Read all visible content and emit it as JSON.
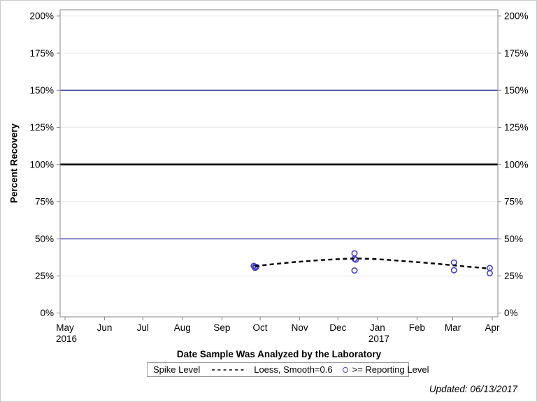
{
  "page": {
    "updated_label": "Updated: 06/13/2017"
  },
  "colors": {
    "frame": "#878787",
    "grid": "#ebebeb",
    "tick": "#878787",
    "ref_blue": "#3a3aae",
    "ref_black": "#000000",
    "marker": "#4343c0",
    "loess": "#000000",
    "legend_border": "#9b9b9b",
    "outer_border": "#c9c9c9"
  },
  "chart_data": {
    "type": "scatter",
    "title": "",
    "ylabel": "Percent Recovery",
    "xlabel": "Date Sample Was Analyzed by the Laboratory",
    "grid": true,
    "y_axis": {
      "min": 0,
      "max": 200,
      "unit": "%",
      "sides": [
        "left",
        "right"
      ],
      "ticks": [
        {
          "value": 0,
          "label": "0%"
        },
        {
          "value": 25,
          "label": "25%"
        },
        {
          "value": 50,
          "label": "50%"
        },
        {
          "value": 75,
          "label": "75%"
        },
        {
          "value": 100,
          "label": "100%"
        },
        {
          "value": 125,
          "label": "125%"
        },
        {
          "value": 150,
          "label": "150%"
        },
        {
          "value": 175,
          "label": "175%"
        },
        {
          "value": 200,
          "label": "200%"
        }
      ]
    },
    "x_axis": {
      "start": "2016-05-01",
      "end": "2017-04-01",
      "ticks": [
        {
          "date": "2016-05-01",
          "label": "May",
          "sublabel": "2016"
        },
        {
          "date": "2016-06-01",
          "label": "Jun"
        },
        {
          "date": "2016-07-01",
          "label": "Jul"
        },
        {
          "date": "2016-08-01",
          "label": "Aug"
        },
        {
          "date": "2016-09-01",
          "label": "Sep"
        },
        {
          "date": "2016-10-01",
          "label": "Oct"
        },
        {
          "date": "2016-11-01",
          "label": "Nov"
        },
        {
          "date": "2016-12-01",
          "label": "Dec"
        },
        {
          "date": "2017-01-01",
          "label": "Jan",
          "sublabel": "2017"
        },
        {
          "date": "2017-02-01",
          "label": "Feb"
        },
        {
          "date": "2017-03-01",
          "label": "Mar"
        },
        {
          "date": "2017-04-01",
          "label": "Apr"
        }
      ]
    },
    "reference_lines": [
      {
        "value": 150,
        "color": "#3a3aae",
        "width": 1.3
      },
      {
        "value": 100,
        "color": "#000000",
        "width": 2.6
      },
      {
        "value": 50,
        "color": "#3a3aae",
        "width": 1.3
      }
    ],
    "series": [
      {
        "name": ">= Reporting Level",
        "type": "scatter",
        "marker": "circle",
        "color": "#4343c0",
        "points": [
          {
            "date": "2016-09-26",
            "value": 31.7
          },
          {
            "date": "2016-09-27",
            "value": 31.2
          },
          {
            "date": "2016-09-27",
            "value": 30.4
          },
          {
            "date": "2016-09-28",
            "value": 31.0
          },
          {
            "date": "2016-12-14",
            "value": 40.2
          },
          {
            "date": "2016-12-14",
            "value": 36.5
          },
          {
            "date": "2016-12-15",
            "value": 35.9
          },
          {
            "date": "2016-12-14",
            "value": 28.6
          },
          {
            "date": "2017-03-02",
            "value": 34.0
          },
          {
            "date": "2017-03-02",
            "value": 28.8
          },
          {
            "date": "2017-03-30",
            "value": 30.3
          },
          {
            "date": "2017-03-30",
            "value": 26.8
          }
        ]
      },
      {
        "name": "Loess, Smooth=0.6",
        "type": "line",
        "style": "dashed",
        "color": "#000000",
        "points": [
          {
            "date": "2016-09-27",
            "value": 31.6
          },
          {
            "date": "2016-10-12",
            "value": 33.0
          },
          {
            "date": "2016-10-28",
            "value": 34.3
          },
          {
            "date": "2016-11-15",
            "value": 35.5
          },
          {
            "date": "2016-12-01",
            "value": 36.3
          },
          {
            "date": "2016-12-15",
            "value": 36.8
          },
          {
            "date": "2017-01-01",
            "value": 36.3
          },
          {
            "date": "2017-01-18",
            "value": 35.2
          },
          {
            "date": "2017-02-05",
            "value": 34.0
          },
          {
            "date": "2017-02-20",
            "value": 32.9
          },
          {
            "date": "2017-03-08",
            "value": 31.6
          },
          {
            "date": "2017-03-20",
            "value": 30.7
          },
          {
            "date": "2017-03-30",
            "value": 29.9
          }
        ]
      }
    ],
    "legend": {
      "position": "bottom",
      "title": "Spike Level",
      "loess_label": "Loess, Smooth=0.6",
      "reporting_label": ">= Reporting Level"
    }
  }
}
